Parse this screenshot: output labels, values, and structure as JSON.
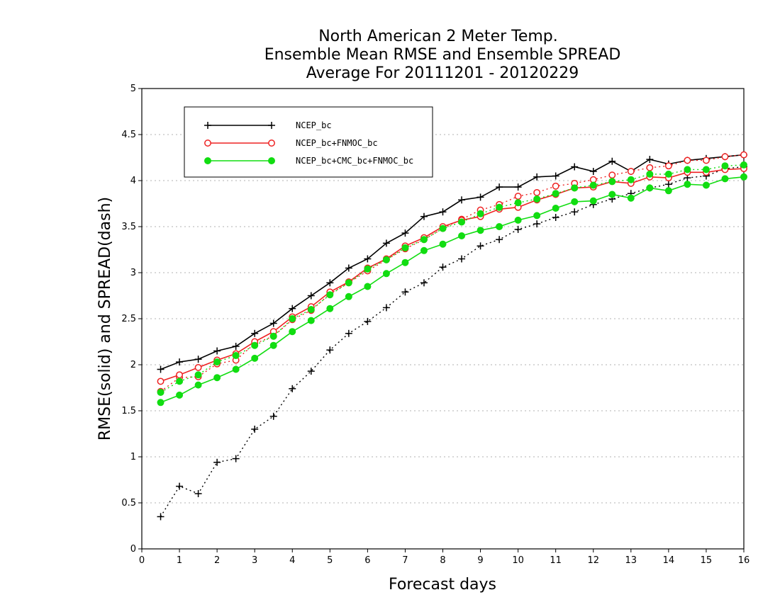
{
  "chart_data": {
    "type": "line",
    "title": [
      "North American 2 Meter Temp.",
      "Ensemble Mean RMSE and Ensemble SPREAD",
      "Average For 20111201 - 20120229"
    ],
    "xlabel": "Forecast days",
    "ylabel": "RMSE(solid) and SPREAD(dash)",
    "xlim": [
      0,
      16
    ],
    "ylim": [
      0,
      5
    ],
    "xticks": [
      "0",
      "1",
      "2",
      "3",
      "4",
      "5",
      "6",
      "7",
      "8",
      "9",
      "10",
      "11",
      "12",
      "13",
      "14",
      "15",
      "16"
    ],
    "yticks": [
      "0",
      "0.5",
      "1",
      "1.5",
      "2",
      "2.5",
      "3",
      "3.5",
      "4",
      "4.5",
      "5"
    ],
    "grid": true,
    "legend_position": "top-left",
    "x": [
      0.5,
      1,
      1.5,
      2,
      2.5,
      3,
      3.5,
      4,
      4.5,
      5,
      5.5,
      6,
      6.5,
      7,
      7.5,
      8,
      8.5,
      9,
      9.5,
      10,
      10.5,
      11,
      11.5,
      12,
      12.5,
      13,
      13.5,
      14,
      14.5,
      15,
      15.5,
      16
    ],
    "series": [
      {
        "name": "NCEP_bc",
        "color": "#000000",
        "marker": "plus",
        "rmse": [
          1.95,
          2.03,
          2.06,
          2.15,
          2.2,
          2.34,
          2.45,
          2.61,
          2.75,
          2.89,
          3.05,
          3.15,
          3.32,
          3.43,
          3.61,
          3.66,
          3.79,
          3.82,
          3.93,
          3.93,
          4.04,
          4.05,
          4.15,
          4.1,
          4.21,
          4.1,
          4.23,
          4.18,
          4.22,
          4.24,
          4.26,
          4.28
        ],
        "spread": [
          0.35,
          0.68,
          0.6,
          0.94,
          0.98,
          1.3,
          1.44,
          1.74,
          1.93,
          2.16,
          2.34,
          2.47,
          2.62,
          2.79,
          2.89,
          3.06,
          3.15,
          3.29,
          3.36,
          3.47,
          3.53,
          3.6,
          3.66,
          3.74,
          3.8,
          3.86,
          3.92,
          3.96,
          4.03,
          4.05,
          4.13,
          4.15
        ]
      },
      {
        "name": "NCEP_bc+FNMOC_bc",
        "color": "#ee2222",
        "marker": "open-circle",
        "rmse": [
          1.82,
          1.89,
          1.97,
          2.05,
          2.12,
          2.25,
          2.36,
          2.52,
          2.63,
          2.79,
          2.9,
          3.05,
          3.15,
          3.29,
          3.38,
          3.5,
          3.57,
          3.61,
          3.69,
          3.71,
          3.79,
          3.85,
          3.92,
          3.93,
          3.99,
          3.97,
          4.04,
          4.03,
          4.09,
          4.09,
          4.12,
          4.13
        ],
        "spread": [
          1.71,
          1.86,
          1.87,
          2.01,
          2.05,
          2.23,
          2.31,
          2.49,
          2.59,
          2.77,
          2.89,
          3.02,
          3.14,
          3.26,
          3.36,
          3.48,
          3.58,
          3.68,
          3.74,
          3.83,
          3.87,
          3.94,
          3.97,
          4.01,
          4.06,
          4.1,
          4.14,
          4.16,
          4.22,
          4.22,
          4.26,
          4.28
        ]
      },
      {
        "name": "NCEP_bc+CMC_bc+FNMOC_bc",
        "color": "#11dd11",
        "marker": "filled-circle",
        "rmse": [
          1.59,
          1.67,
          1.78,
          1.86,
          1.95,
          2.07,
          2.21,
          2.36,
          2.48,
          2.61,
          2.74,
          2.85,
          2.99,
          3.11,
          3.24,
          3.31,
          3.4,
          3.46,
          3.5,
          3.57,
          3.62,
          3.7,
          3.77,
          3.78,
          3.85,
          3.81,
          3.92,
          3.89,
          3.96,
          3.95,
          4.02,
          4.04
        ],
        "spread": [
          1.7,
          1.82,
          1.89,
          2.03,
          2.1,
          2.21,
          2.31,
          2.5,
          2.6,
          2.76,
          2.89,
          3.04,
          3.14,
          3.27,
          3.36,
          3.48,
          3.55,
          3.64,
          3.71,
          3.76,
          3.8,
          3.86,
          3.92,
          3.95,
          3.99,
          4.01,
          4.07,
          4.07,
          4.12,
          4.12,
          4.16,
          4.17
        ]
      }
    ]
  }
}
